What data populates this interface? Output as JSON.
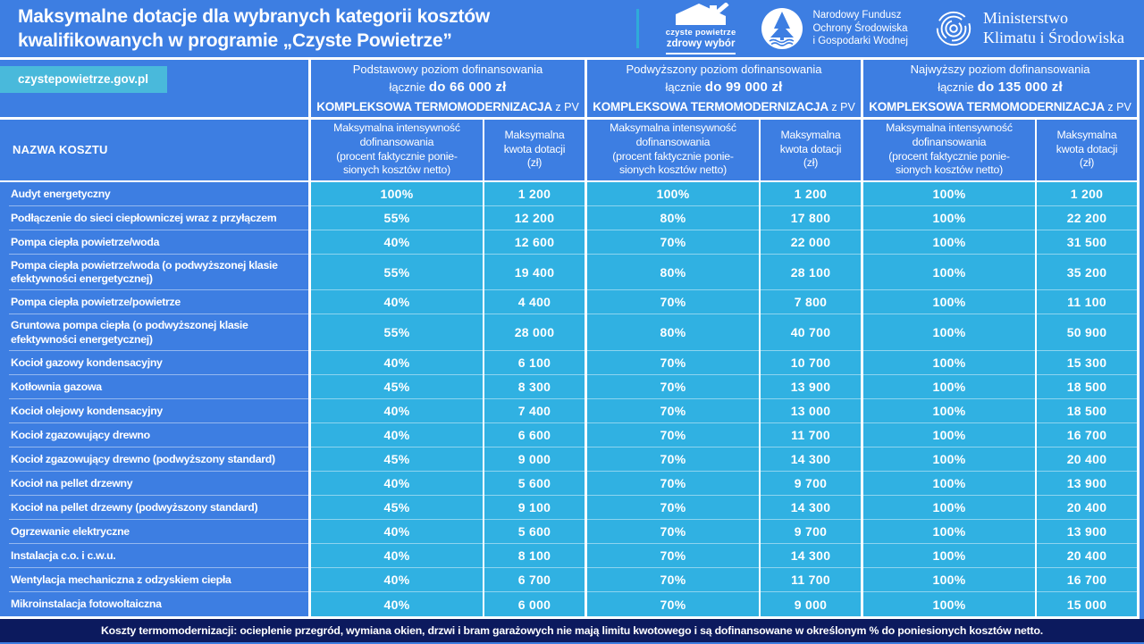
{
  "colors": {
    "background_blue": "#3D7EE2",
    "data_cell_cyan": "#30B1E2",
    "website_button_cyan": "#49B9DB",
    "header_divider_cyan": "#2FABD9",
    "footer_navy": "#0C1A5E"
  },
  "header": {
    "title_line1": "Maksymalne dotacje dla wybranych kategorii kosztów",
    "title_line2": "kwalifikowanych w programie „Czyste Powietrze”",
    "logos": {
      "czyste_powietrze": {
        "icon": "house-check-icon",
        "line1": "czyste powietrze",
        "line2": "zdrowy wybór"
      },
      "nfosigw": {
        "icon": "tree-emblem-icon",
        "line1": "Narodowy Fundusz",
        "line2": "Ochrony Środowiska",
        "line3": "i Gospodarki Wodnej"
      },
      "ministerstwo": {
        "icon": "fingerprint-rings-icon",
        "line1": "Ministerstwo",
        "line2": "Klimatu i Środowiska"
      }
    }
  },
  "website_button": {
    "label": "czystepowietrze.gov.pl"
  },
  "table": {
    "name_header": "NAZWA KOSZTU",
    "groups": [
      {
        "line1": "Podstawowy poziom dofinansowania",
        "line2_normal": "łącznie",
        "line2_bold": "do 66 000 zł",
        "line3_bold": "KOMPLEKSOWA TERMOMODERNIZACJA",
        "line3_normal": " z PV"
      },
      {
        "line1": "Podwyższony poziom dofinansowania",
        "line2_normal": "łącznie",
        "line2_bold": "do 99 000 zł",
        "line3_bold": "KOMPLEKSOWA TERMOMODERNIZACJA",
        "line3_normal": " z PV"
      },
      {
        "line1": "Najwyższy poziom dofinansowania",
        "line2_normal": "łącznie",
        "line2_bold": "do 135 000 zł",
        "line3_bold": "KOMPLEKSOWA TERMOMODERNIZACJA",
        "line3_normal": " z PV"
      }
    ],
    "sub_headers": {
      "intensity": "Maksymalna intensywność\ndofinansowania\n(procent faktycznie ponie-\nsionych kosztów netto)",
      "amount": "Maksymalna\nkwota dotacji\n(zł)"
    },
    "rows": [
      {
        "name": "Audyt energetyczny",
        "values": [
          "100%",
          "1 200",
          "100%",
          "1 200",
          "100%",
          "1 200"
        ]
      },
      {
        "name": "Podłączenie do sieci ciepłowniczej wraz z przyłączem",
        "values": [
          "55%",
          "12 200",
          "80%",
          "17 800",
          "100%",
          "22 200"
        ]
      },
      {
        "name": "Pompa ciepła powietrze/woda",
        "values": [
          "40%",
          "12 600",
          "70%",
          "22 000",
          "100%",
          "31 500"
        ]
      },
      {
        "name": "Pompa ciepła powietrze/woda (o podwyższonej klasie efektywności energetycznej)",
        "values": [
          "55%",
          "19 400",
          "80%",
          "28 100",
          "100%",
          "35 200"
        ]
      },
      {
        "name": "Pompa ciepła powietrze/powietrze",
        "values": [
          "40%",
          "4 400",
          "70%",
          "7 800",
          "100%",
          "11 100"
        ]
      },
      {
        "name": "Gruntowa pompa ciepła (o podwyższonej klasie efektywności energetycznej)",
        "values": [
          "55%",
          "28 000",
          "80%",
          "40 700",
          "100%",
          "50 900"
        ]
      },
      {
        "name": "Kocioł gazowy kondensacyjny",
        "values": [
          "40%",
          "6 100",
          "70%",
          "10 700",
          "100%",
          "15 300"
        ]
      },
      {
        "name": "Kotłownia gazowa",
        "values": [
          "45%",
          "8 300",
          "70%",
          "13 900",
          "100%",
          "18 500"
        ]
      },
      {
        "name": "Kocioł olejowy kondensacyjny",
        "values": [
          "40%",
          "7 400",
          "70%",
          "13 000",
          "100%",
          "18 500"
        ]
      },
      {
        "name": "Kocioł zgazowujący drewno",
        "values": [
          "40%",
          "6 600",
          "70%",
          "11 700",
          "100%",
          "16 700"
        ]
      },
      {
        "name": "Kocioł zgazowujący drewno (podwyższony standard)",
        "values": [
          "45%",
          "9 000",
          "70%",
          "14 300",
          "100%",
          "20 400"
        ]
      },
      {
        "name": "Kocioł na pellet drzewny",
        "values": [
          "40%",
          "5 600",
          "70%",
          "9 700",
          "100%",
          "13 900"
        ]
      },
      {
        "name": "Kocioł na pellet drzewny (podwyższony standard)",
        "values": [
          "45%",
          "9 100",
          "70%",
          "14 300",
          "100%",
          "20 400"
        ]
      },
      {
        "name": "Ogrzewanie elektryczne",
        "values": [
          "40%",
          "5 600",
          "70%",
          "9 700",
          "100%",
          "13 900"
        ]
      },
      {
        "name": "Instalacja c.o. i c.w.u.",
        "values": [
          "40%",
          "8 100",
          "70%",
          "14 300",
          "100%",
          "20 400"
        ]
      },
      {
        "name": "Wentylacja mechaniczna z odzyskiem ciepła",
        "values": [
          "40%",
          "6 700",
          "70%",
          "11 700",
          "100%",
          "16 700"
        ]
      },
      {
        "name": "Mikroinstalacja fotowoltaiczna",
        "values": [
          "40%",
          "6 000",
          "70%",
          "9 000",
          "100%",
          "15 000"
        ]
      }
    ]
  },
  "footer": {
    "note": "Koszty termomodernizacji: ocieplenie przegród, wymiana okien, drzwi i bram garażowych nie mają limitu kwotowego i są dofinansowane w określonym % do poniesionych kosztów netto."
  }
}
